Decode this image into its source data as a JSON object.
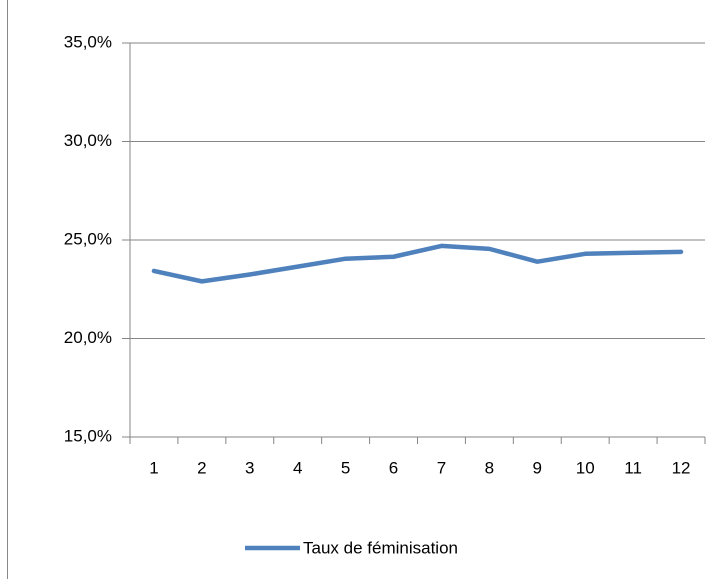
{
  "chart_data": {
    "type": "line",
    "categories": [
      "1",
      "2",
      "3",
      "4",
      "5",
      "6",
      "7",
      "8",
      "9",
      "10",
      "11",
      "12"
    ],
    "series": [
      {
        "name": "Taux de féminisation",
        "color": "#4f81bd",
        "values": [
          23.43,
          22.9,
          23.25,
          23.65,
          24.05,
          24.15,
          24.7,
          24.55,
          23.9,
          24.3,
          24.35,
          24.4
        ]
      }
    ],
    "ylim": [
      15,
      35
    ],
    "yticks": [
      {
        "value": 15,
        "label": "15,0%"
      },
      {
        "value": 20,
        "label": "20,0%"
      },
      {
        "value": 25,
        "label": "25,0%"
      },
      {
        "value": 30,
        "label": "30,0%"
      },
      {
        "value": 35,
        "label": "35,0%"
      }
    ],
    "grid": true,
    "legend": "bottom"
  }
}
